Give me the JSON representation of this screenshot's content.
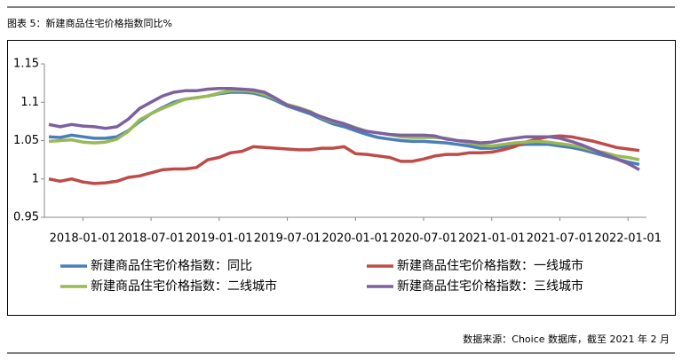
{
  "chart_data": {
    "type": "line",
    "title": "图表 5：新建商品住宅价格指数同比%",
    "source": "数据来源：Choice 数据库，截至 2021 年 2 月",
    "categories": [
      null,
      null,
      null,
      "2018-01-01",
      null,
      null,
      null,
      null,
      null,
      "2018-07-01",
      null,
      null,
      null,
      null,
      null,
      "2019-01-01",
      null,
      null,
      null,
      null,
      null,
      "2019-07-01",
      null,
      null,
      null,
      null,
      null,
      "2020-01-01",
      null,
      null,
      null,
      null,
      null,
      "2020-07-01",
      null,
      null,
      null,
      null,
      null,
      "2021-01-01",
      null,
      null,
      null,
      null,
      null,
      "2021-07-01",
      null,
      null,
      null,
      null,
      null,
      "2022-01-01",
      null
    ],
    "series": [
      {
        "name": "新建商品住宅价格指数：同比",
        "color": "#4a7ebb",
        "values": [
          1.055,
          1.054,
          1.057,
          1.055,
          1.053,
          1.053,
          1.055,
          1.063,
          1.075,
          1.085,
          1.093,
          1.1,
          1.104,
          1.106,
          1.108,
          1.111,
          1.113,
          1.113,
          1.112,
          1.108,
          1.102,
          1.095,
          1.09,
          1.085,
          1.078,
          1.072,
          1.068,
          1.063,
          1.058,
          1.054,
          1.052,
          1.05,
          1.049,
          1.049,
          1.048,
          1.047,
          1.045,
          1.043,
          1.04,
          1.04,
          1.042,
          1.044,
          1.045,
          1.045,
          1.045,
          1.043,
          1.041,
          1.038,
          1.034,
          1.03,
          1.026,
          1.022,
          1.019
        ]
      },
      {
        "name": "新建商品住宅价格指数：一线城市",
        "color": "#be4b48",
        "values": [
          1.0,
          0.997,
          1.0,
          0.996,
          0.994,
          0.995,
          0.997,
          1.002,
          1.004,
          1.008,
          1.012,
          1.013,
          1.013,
          1.015,
          1.025,
          1.028,
          1.034,
          1.036,
          1.042,
          1.041,
          1.04,
          1.039,
          1.038,
          1.038,
          1.04,
          1.04,
          1.042,
          1.033,
          1.032,
          1.03,
          1.028,
          1.023,
          1.023,
          1.026,
          1.03,
          1.032,
          1.032,
          1.034,
          1.034,
          1.035,
          1.038,
          1.042,
          1.048,
          1.052,
          1.055,
          1.056,
          1.055,
          1.052,
          1.049,
          1.045,
          1.041,
          1.039,
          1.037
        ]
      },
      {
        "name": "新建商品住宅价格指数：二线城市",
        "color": "#98b954",
        "values": [
          1.049,
          1.05,
          1.051,
          1.048,
          1.047,
          1.048,
          1.052,
          1.062,
          1.077,
          1.085,
          1.092,
          1.098,
          1.104,
          1.106,
          1.108,
          1.112,
          1.115,
          1.115,
          1.114,
          1.11,
          1.104,
          1.097,
          1.093,
          1.088,
          1.08,
          1.075,
          1.072,
          1.067,
          1.062,
          1.06,
          1.058,
          1.055,
          1.054,
          1.054,
          1.054,
          1.053,
          1.05,
          1.047,
          1.044,
          1.043,
          1.045,
          1.047,
          1.048,
          1.049,
          1.048,
          1.046,
          1.044,
          1.041,
          1.037,
          1.034,
          1.03,
          1.028,
          1.025
        ]
      },
      {
        "name": "新建商品住宅价格指数：三线城市",
        "color": "#7d60a0",
        "values": [
          1.071,
          1.068,
          1.071,
          1.069,
          1.068,
          1.066,
          1.068,
          1.078,
          1.092,
          1.1,
          1.108,
          1.113,
          1.115,
          1.115,
          1.117,
          1.118,
          1.118,
          1.117,
          1.116,
          1.113,
          1.105,
          1.096,
          1.092,
          1.087,
          1.081,
          1.076,
          1.072,
          1.066,
          1.062,
          1.06,
          1.058,
          1.057,
          1.057,
          1.057,
          1.056,
          1.052,
          1.05,
          1.049,
          1.047,
          1.048,
          1.051,
          1.053,
          1.055,
          1.055,
          1.055,
          1.053,
          1.049,
          1.044,
          1.038,
          1.032,
          1.026,
          1.02,
          1.012
        ]
      }
    ],
    "ylim": [
      0.95,
      1.15
    ],
    "yticks": [
      0.95,
      1,
      1.05,
      1.1,
      1.15
    ],
    "grid": false
  }
}
